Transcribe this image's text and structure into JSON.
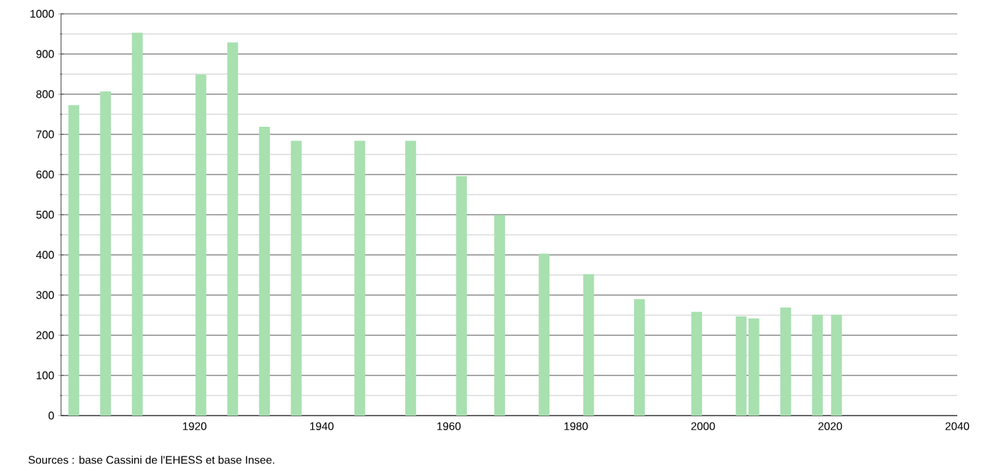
{
  "chart_data": {
    "type": "bar",
    "x": [
      1901,
      1906,
      1911,
      1921,
      1926,
      1931,
      1936,
      1946,
      1954,
      1962,
      1968,
      1975,
      1982,
      1990,
      1999,
      2006,
      2008,
      2013,
      2018,
      2021
    ],
    "values": [
      773,
      807,
      953,
      849,
      929,
      719,
      684,
      684,
      684,
      596,
      499,
      403,
      352,
      290,
      258,
      247,
      242,
      269,
      251,
      251
    ],
    "color": "#a8e0b0",
    "xlim": [
      1899,
      2040
    ],
    "xticks": [
      1920,
      1940,
      1960,
      1980,
      2000,
      2020,
      2040
    ],
    "ylim": [
      0,
      1000
    ],
    "yticks": [
      0,
      100,
      200,
      300,
      400,
      500,
      600,
      700,
      800,
      900,
      1000
    ],
    "grid": "y",
    "annotations": [
      "Sources : base Cassini de l'EHESS et base Insee."
    ]
  }
}
